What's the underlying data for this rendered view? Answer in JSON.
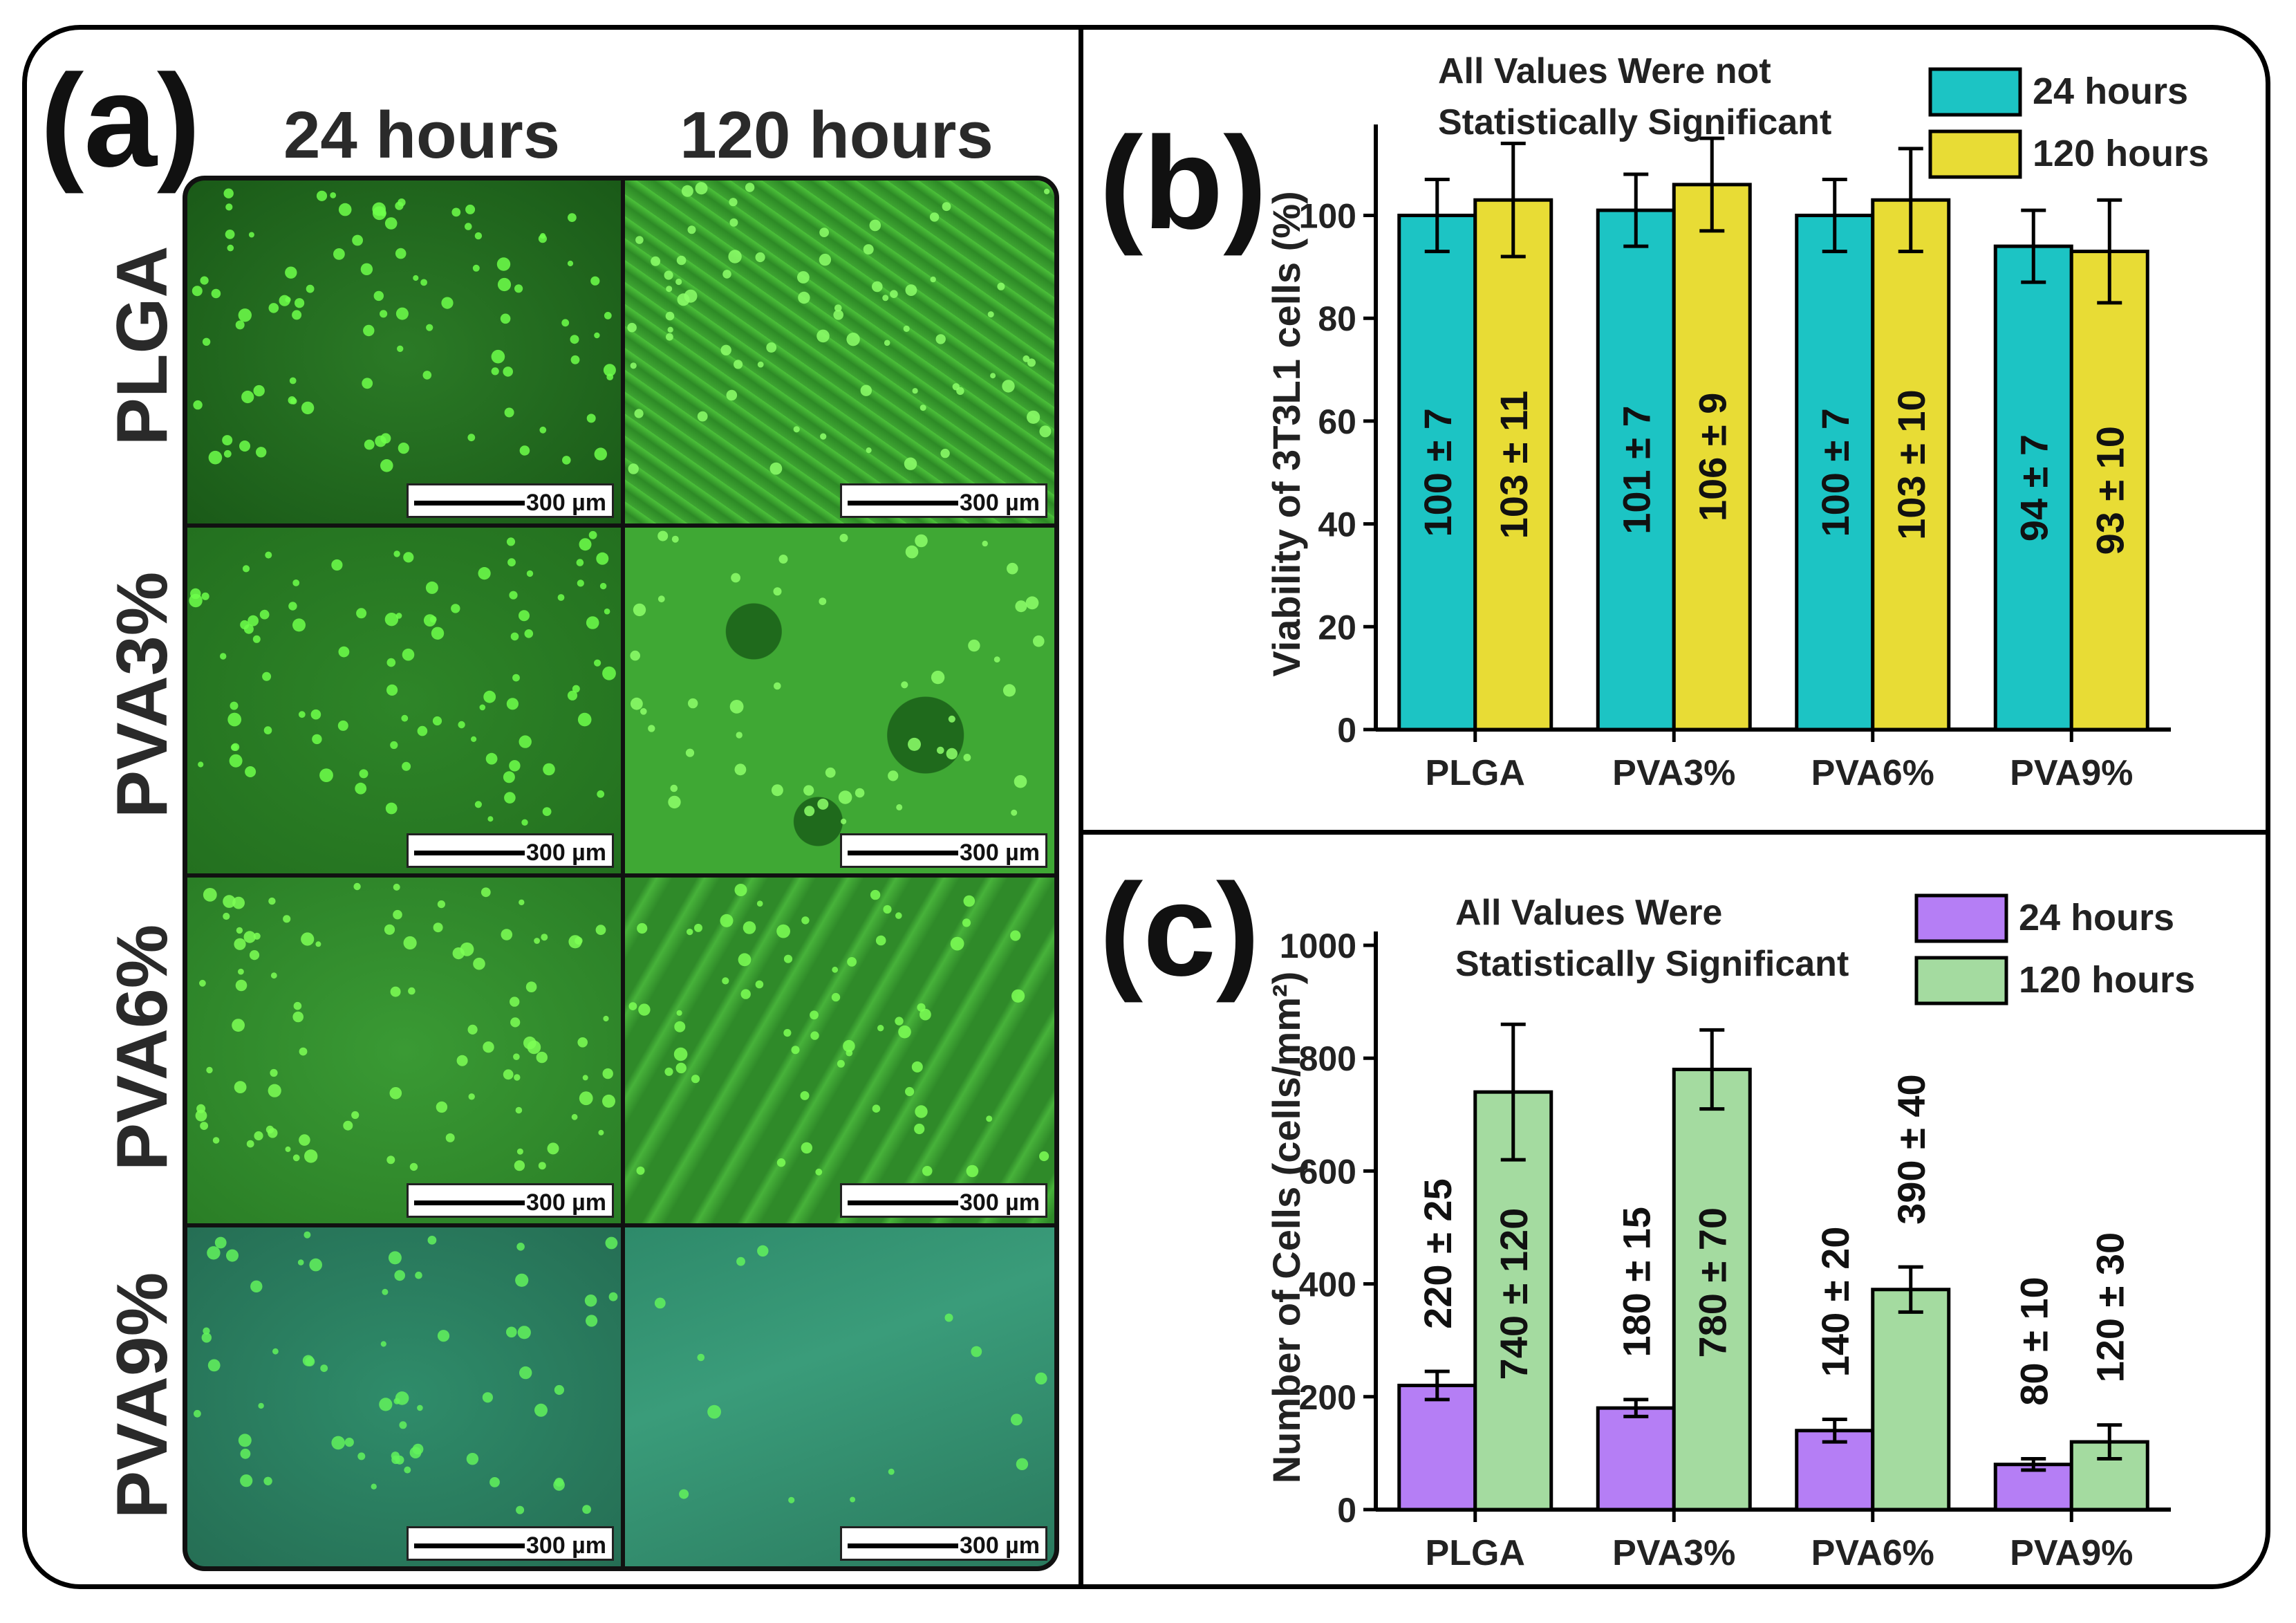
{
  "panel_a": {
    "letter": "(a)",
    "columns": [
      "24 hours",
      "120 hours"
    ],
    "rows": [
      "PLGA",
      "PVA3%",
      "PVA6%",
      "PVA9%"
    ],
    "scale_bar": "300 µm",
    "colors": {
      "bg_dark": "#1f6b1f",
      "bg_mid": "#2f8a2a",
      "cells": "#6dff4a",
      "teal_bg": "#2f8a70"
    }
  },
  "chart_data": [
    {
      "panel": "(b)",
      "type": "bar",
      "title": "",
      "annotation": [
        "All Values Were not",
        "Statistically Significant"
      ],
      "categories": [
        "PLGA",
        "PVA3%",
        "PVA6%",
        "PVA9%"
      ],
      "series": [
        {
          "name": "24 hours",
          "color": "#1cc4c4",
          "values": [
            100,
            101,
            100,
            94
          ],
          "errors": [
            7,
            7,
            7,
            7
          ],
          "labels": [
            "100 ± 7",
            "101 ± 7",
            "100 ± 7",
            "94 ± 7"
          ]
        },
        {
          "name": "120 hours",
          "color": "#e8dc35",
          "values": [
            103,
            106,
            103,
            93
          ],
          "errors": [
            11,
            9,
            10,
            10
          ],
          "labels": [
            "103 ± 11",
            "106 ± 9",
            "103 ± 10",
            "93 ± 10"
          ]
        }
      ],
      "xlabel": "",
      "ylabel": "Viability of 3T3L1 cells (%)",
      "ylim": [
        0,
        115
      ],
      "yticks": [
        0,
        20,
        40,
        60,
        80,
        100
      ],
      "legend": "top-right"
    },
    {
      "panel": "(c)",
      "type": "bar",
      "title": "",
      "annotation": [
        "All Values Were",
        "Statistically Significant"
      ],
      "categories": [
        "PLGA",
        "PVA3%",
        "PVA6%",
        "PVA9%"
      ],
      "series": [
        {
          "name": "24 hours",
          "color": "#b57ef5",
          "values": [
            220,
            180,
            140,
            80
          ],
          "errors": [
            25,
            15,
            20,
            10
          ],
          "labels": [
            "220 ± 25",
            "180 ± 15",
            "140 ± 20",
            "80 ± 10"
          ]
        },
        {
          "name": "120 hours",
          "color": "#a4dba0",
          "values": [
            740,
            780,
            390,
            120
          ],
          "errors": [
            120,
            70,
            40,
            30
          ],
          "labels": [
            "740 ± 120",
            "780 ± 70",
            "390 ± 40",
            "120 ± 30"
          ]
        }
      ],
      "xlabel": "",
      "ylabel": "Number of Cells (cells/mm²)",
      "ylim": [
        0,
        1000
      ],
      "yticks": [
        0,
        200,
        400,
        600,
        800,
        1000
      ],
      "legend": "top-right"
    }
  ]
}
